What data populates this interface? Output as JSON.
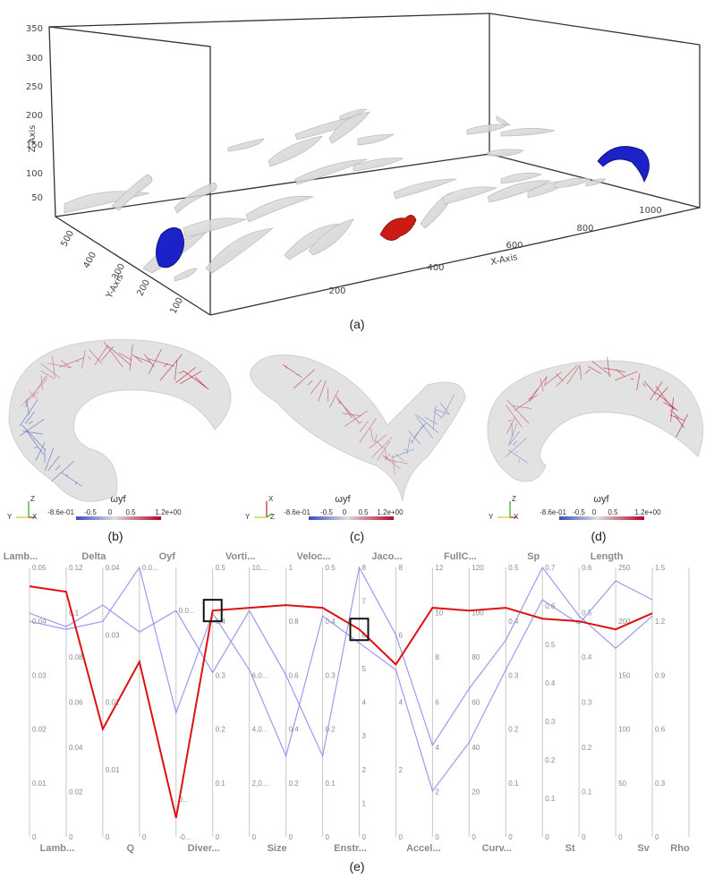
{
  "captions": {
    "a": "(a)",
    "b": "(b)",
    "c": "(c)",
    "d": "(d)",
    "e": "(e)"
  },
  "scene3d": {
    "z_axis_label": "Z-Axis",
    "x_axis_label": "X-Axis",
    "y_axis_label": "Y-Axis",
    "z_ticks": [
      "350",
      "300",
      "250",
      "200",
      "150",
      "100",
      "50"
    ],
    "x_ticks": [
      "200",
      "400",
      "600",
      "800",
      "1000"
    ],
    "y_ticks": [
      "500",
      "400",
      "300",
      "200",
      "100"
    ],
    "highlight_colors": {
      "red_feature": "#cc1a14",
      "blue_feature_1": "#1a22c8",
      "blue_feature_2": "#1a22c8"
    }
  },
  "colorbars": [
    {
      "title": "ωyf",
      "min": "-8.6e-01",
      "ticks": [
        "-0.5",
        "0",
        "0.5"
      ],
      "max": "1.2e+00"
    },
    {
      "title": "ωyf",
      "min": "-8.6e-01",
      "ticks": [
        "-0.5",
        "0",
        "0.5"
      ],
      "max": "1.2e+00"
    },
    {
      "title": "ωyf",
      "min": "-8.6e-01",
      "ticks": [
        "-0.5",
        "0",
        "0.5"
      ],
      "max": "1.2e+00"
    }
  ],
  "colormap": {
    "low": "#3b4cc0",
    "mid": "#dddddd",
    "high": "#b40426"
  },
  "chart_data": {
    "type": "parallel-coordinates",
    "axes": [
      {
        "top": "Lamb...",
        "bottom": "",
        "ticks": [
          "0",
          "0.01",
          "0.02",
          "0.03",
          "0.04",
          "0.05"
        ],
        "range": [
          0,
          0.05
        ]
      },
      {
        "top": "",
        "bottom": "Lamb...",
        "ticks": [
          "0",
          "0.02",
          "0.04",
          "0.06",
          "0.08",
          "0.1",
          "0.12"
        ],
        "range": [
          0,
          0.12
        ]
      },
      {
        "top": "Delta",
        "bottom": "",
        "ticks": [
          "0",
          "0.01",
          "0.02",
          "0.03",
          "0.04"
        ],
        "range": [
          0,
          0.04
        ]
      },
      {
        "top": "",
        "bottom": "Q",
        "ticks": [
          "0",
          "0.0..."
        ],
        "range": [
          0,
          0.04
        ]
      },
      {
        "top": "Oyf",
        "bottom": "",
        "ticks": [
          "-0...",
          "0...",
          "0.0..."
        ],
        "range": [
          0,
          1
        ]
      },
      {
        "top": "",
        "bottom": "Diver...",
        "ticks": [
          "0",
          "0.1",
          "0.2",
          "0.3",
          "0.4",
          "0.5"
        ],
        "range": [
          0,
          0.5
        ]
      },
      {
        "top": "Vorti...",
        "bottom": "",
        "ticks": [
          "0",
          "2,0...",
          "4,0...",
          "6,0...",
          "10,..."
        ],
        "range": [
          0,
          10000
        ]
      },
      {
        "top": "",
        "bottom": "Size",
        "ticks": [
          "0",
          "0.2",
          "0.4",
          "0.6",
          "0.8",
          "1"
        ],
        "range": [
          0,
          1
        ]
      },
      {
        "top": "Veloc...",
        "bottom": "",
        "ticks": [
          "0",
          "0.1",
          "0.2",
          "0.3",
          "0.4",
          "0.5"
        ],
        "range": [
          0,
          0.5
        ]
      },
      {
        "top": "",
        "bottom": "Enstr...",
        "ticks": [
          "0",
          "1",
          "2",
          "3",
          "4",
          "5",
          "6",
          "7",
          "8"
        ],
        "range": [
          0,
          8
        ]
      },
      {
        "top": "Jaco...",
        "bottom": "",
        "ticks": [
          "2",
          "4",
          "6",
          "8"
        ],
        "range": [
          0,
          8
        ]
      },
      {
        "top": "",
        "bottom": "Accel...",
        "ticks": [
          "0",
          "2",
          "4",
          "6",
          "8",
          "10",
          "12"
        ],
        "range": [
          0,
          12
        ]
      },
      {
        "top": "FullC...",
        "bottom": "",
        "ticks": [
          "20",
          "40",
          "60",
          "80",
          "100",
          "120"
        ],
        "range": [
          0,
          120
        ]
      },
      {
        "top": "",
        "bottom": "Curv...",
        "ticks": [
          "0",
          "0.1",
          "0.2",
          "0.3",
          "0.4",
          "0.5"
        ],
        "range": [
          0,
          0.5
        ]
      },
      {
        "top": "Sp",
        "bottom": "",
        "ticks": [
          "0",
          "0.1",
          "0.2",
          "0.3",
          "0.4",
          "0.5",
          "0.6",
          "0.7"
        ],
        "range": [
          0,
          0.7
        ]
      },
      {
        "top": "",
        "bottom": "St",
        "ticks": [
          "0",
          "0.1",
          "0.2",
          "0.3",
          "0.4",
          "0.5",
          "0.6"
        ],
        "range": [
          0,
          0.6
        ]
      },
      {
        "top": "Length",
        "bottom": "",
        "ticks": [
          "0",
          "50",
          "100",
          "150",
          "200",
          "250"
        ],
        "range": [
          0,
          250
        ]
      },
      {
        "top": "",
        "bottom": "Sv",
        "ticks": [
          "0",
          "0.3",
          "0.6",
          "0.9",
          "1.2",
          "1.5"
        ],
        "range": [
          0,
          1.5
        ]
      },
      {
        "top": "",
        "bottom": "Rho",
        "ticks": [],
        "range": [
          0,
          1
        ]
      }
    ],
    "tick_label_list": [
      {
        "a": 0,
        "v": "0.05",
        "f": 1
      },
      {
        "a": 0,
        "v": "0.04",
        "f": 0.8
      },
      {
        "a": 0,
        "v": "0.03",
        "f": 0.6
      },
      {
        "a": 0,
        "v": "0.02",
        "f": 0.4
      },
      {
        "a": 0,
        "v": "0.01",
        "f": 0.2
      },
      {
        "a": 0,
        "v": "0",
        "f": 0
      },
      {
        "a": 1,
        "v": "0.12",
        "f": 1
      },
      {
        "a": 1,
        "v": "0.1",
        "f": 0.833
      },
      {
        "a": 1,
        "v": "0.08",
        "f": 0.667
      },
      {
        "a": 1,
        "v": "0.06",
        "f": 0.5
      },
      {
        "a": 1,
        "v": "0.04",
        "f": 0.333
      },
      {
        "a": 1,
        "v": "0.02",
        "f": 0.167
      },
      {
        "a": 1,
        "v": "0",
        "f": 0
      },
      {
        "a": 2,
        "v": "0.04",
        "f": 1
      },
      {
        "a": 2,
        "v": "0.03",
        "f": 0.75
      },
      {
        "a": 2,
        "v": "0.02",
        "f": 0.5
      },
      {
        "a": 2,
        "v": "0.01",
        "f": 0.25
      },
      {
        "a": 2,
        "v": "0",
        "f": 0
      },
      {
        "a": 3,
        "v": "0.0...",
        "f": 1
      },
      {
        "a": 3,
        "v": "0",
        "f": 0
      },
      {
        "a": 4,
        "v": "0.0...",
        "f": 0.84
      },
      {
        "a": 4,
        "v": "0...",
        "f": 0.14
      },
      {
        "a": 4,
        "v": "-0...",
        "f": 0
      },
      {
        "a": 5,
        "v": "0.5",
        "f": 1
      },
      {
        "a": 5,
        "v": "0.4",
        "f": 0.8
      },
      {
        "a": 5,
        "v": "0.3",
        "f": 0.6
      },
      {
        "a": 5,
        "v": "0.2",
        "f": 0.4
      },
      {
        "a": 5,
        "v": "0.1",
        "f": 0.2
      },
      {
        "a": 5,
        "v": "0",
        "f": 0
      },
      {
        "a": 6,
        "v": "10,...",
        "f": 1
      },
      {
        "a": 6,
        "v": "6,0...",
        "f": 0.6
      },
      {
        "a": 6,
        "v": "4,0...",
        "f": 0.4
      },
      {
        "a": 6,
        "v": "2,0...",
        "f": 0.2
      },
      {
        "a": 6,
        "v": "0",
        "f": 0
      },
      {
        "a": 7,
        "v": "1",
        "f": 1
      },
      {
        "a": 7,
        "v": "0.8",
        "f": 0.8
      },
      {
        "a": 7,
        "v": "0.6",
        "f": 0.6
      },
      {
        "a": 7,
        "v": "0.4",
        "f": 0.4
      },
      {
        "a": 7,
        "v": "0.2",
        "f": 0.2
      },
      {
        "a": 7,
        "v": "0",
        "f": 0
      },
      {
        "a": 8,
        "v": "0.5",
        "f": 1
      },
      {
        "a": 8,
        "v": "0.4",
        "f": 0.8
      },
      {
        "a": 8,
        "v": "0.3",
        "f": 0.6
      },
      {
        "a": 8,
        "v": "0.2",
        "f": 0.4
      },
      {
        "a": 8,
        "v": "0.1",
        "f": 0.2
      },
      {
        "a": 8,
        "v": "0",
        "f": 0
      },
      {
        "a": 9,
        "v": "8",
        "f": 1
      },
      {
        "a": 9,
        "v": "7",
        "f": 0.875
      },
      {
        "a": 9,
        "v": "6",
        "f": 0.75
      },
      {
        "a": 9,
        "v": "5",
        "f": 0.625
      },
      {
        "a": 9,
        "v": "4",
        "f": 0.5
      },
      {
        "a": 9,
        "v": "3",
        "f": 0.375
      },
      {
        "a": 9,
        "v": "2",
        "f": 0.25
      },
      {
        "a": 9,
        "v": "1",
        "f": 0.125
      },
      {
        "a": 9,
        "v": "0",
        "f": 0
      },
      {
        "a": 10,
        "v": "8",
        "f": 1
      },
      {
        "a": 10,
        "v": "6",
        "f": 0.75
      },
      {
        "a": 10,
        "v": "4",
        "f": 0.5
      },
      {
        "a": 10,
        "v": "2",
        "f": 0.25
      },
      {
        "a": 10,
        "v": "0",
        "f": 0
      },
      {
        "a": 11,
        "v": "12",
        "f": 1
      },
      {
        "a": 11,
        "v": "10",
        "f": 0.833
      },
      {
        "a": 11,
        "v": "8",
        "f": 0.667
      },
      {
        "a": 11,
        "v": "6",
        "f": 0.5
      },
      {
        "a": 11,
        "v": "4",
        "f": 0.333
      },
      {
        "a": 11,
        "v": "2",
        "f": 0.167
      },
      {
        "a": 11,
        "v": "0",
        "f": 0
      },
      {
        "a": 12,
        "v": "120",
        "f": 1
      },
      {
        "a": 12,
        "v": "100",
        "f": 0.833
      },
      {
        "a": 12,
        "v": "80",
        "f": 0.667
      },
      {
        "a": 12,
        "v": "60",
        "f": 0.5
      },
      {
        "a": 12,
        "v": "40",
        "f": 0.333
      },
      {
        "a": 12,
        "v": "20",
        "f": 0.167
      },
      {
        "a": 12,
        "v": "0",
        "f": 0
      },
      {
        "a": 13,
        "v": "0.5",
        "f": 1
      },
      {
        "a": 13,
        "v": "0.4",
        "f": 0.8
      },
      {
        "a": 13,
        "v": "0.3",
        "f": 0.6
      },
      {
        "a": 13,
        "v": "0.2",
        "f": 0.4
      },
      {
        "a": 13,
        "v": "0.1",
        "f": 0.2
      },
      {
        "a": 13,
        "v": "0",
        "f": 0
      },
      {
        "a": 14,
        "v": "0.7",
        "f": 1
      },
      {
        "a": 14,
        "v": "0.6",
        "f": 0.857
      },
      {
        "a": 14,
        "v": "0.5",
        "f": 0.714
      },
      {
        "a": 14,
        "v": "0.4",
        "f": 0.571
      },
      {
        "a": 14,
        "v": "0.3",
        "f": 0.429
      },
      {
        "a": 14,
        "v": "0.2",
        "f": 0.286
      },
      {
        "a": 14,
        "v": "0.1",
        "f": 0.143
      },
      {
        "a": 14,
        "v": "0",
        "f": 0
      },
      {
        "a": 15,
        "v": "0.6",
        "f": 1
      },
      {
        "a": 15,
        "v": "0.5",
        "f": 0.833
      },
      {
        "a": 15,
        "v": "0.4",
        "f": 0.667
      },
      {
        "a": 15,
        "v": "0.3",
        "f": 0.5
      },
      {
        "a": 15,
        "v": "0.2",
        "f": 0.333
      },
      {
        "a": 15,
        "v": "0.1",
        "f": 0.167
      },
      {
        "a": 15,
        "v": "0",
        "f": 0
      },
      {
        "a": 16,
        "v": "250",
        "f": 1
      },
      {
        "a": 16,
        "v": "200",
        "f": 0.8
      },
      {
        "a": 16,
        "v": "150",
        "f": 0.6
      },
      {
        "a": 16,
        "v": "100",
        "f": 0.4
      },
      {
        "a": 16,
        "v": "50",
        "f": 0.2
      },
      {
        "a": 16,
        "v": "0",
        "f": 0
      },
      {
        "a": 17,
        "v": "1.5",
        "f": 1
      },
      {
        "a": 17,
        "v": "1.2",
        "f": 0.8
      },
      {
        "a": 17,
        "v": "0.9",
        "f": 0.6
      },
      {
        "a": 17,
        "v": "0.6",
        "f": 0.4
      },
      {
        "a": 17,
        "v": "0.3",
        "f": 0.2
      },
      {
        "a": 17,
        "v": "0",
        "f": 0
      }
    ],
    "series": [
      {
        "highlighted": true,
        "color": "#dd1111",
        "values": [
          0.93,
          0.91,
          0.4,
          0.65,
          0.07,
          0.84,
          0.85,
          0.86,
          0.85,
          0.77,
          0.64,
          0.85,
          0.84,
          0.85,
          0.81,
          0.8,
          0.77,
          0.83
        ]
      },
      {
        "highlighted": false,
        "color": "#8888ee",
        "values": [
          0.83,
          0.78,
          0.86,
          0.76,
          0.84,
          0.61,
          0.84,
          0.6,
          0.3,
          1.0,
          0.75,
          0.34,
          0.55,
          0.73,
          1.0,
          0.82,
          0.7,
          0.82
        ]
      },
      {
        "highlighted": false,
        "color": "#8888ee",
        "values": [
          0.8,
          0.77,
          0.8,
          1.0,
          0.46,
          0.83,
          0.62,
          0.3,
          0.82,
          0.72,
          0.62,
          0.17,
          0.35,
          0.62,
          0.88,
          0.79,
          0.95,
          0.88
        ]
      }
    ],
    "highlight_boxes_on_axes": [
      5,
      9
    ]
  }
}
